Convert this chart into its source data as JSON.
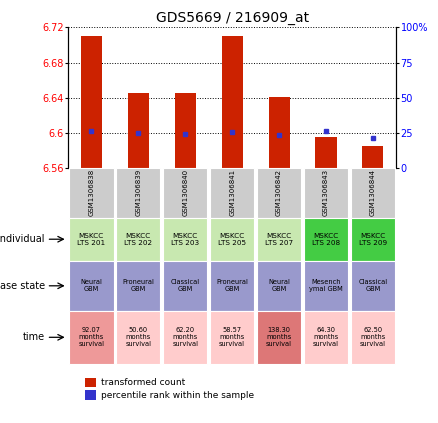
{
  "title": "GDS5669 / 216909_at",
  "samples": [
    "GSM1306838",
    "GSM1306839",
    "GSM1306840",
    "GSM1306841",
    "GSM1306842",
    "GSM1306843",
    "GSM1306844"
  ],
  "transformed_count": [
    6.71,
    6.645,
    6.645,
    6.71,
    6.641,
    6.595,
    6.585
  ],
  "percentile_rank": [
    26.0,
    24.5,
    24.0,
    25.5,
    23.5,
    26.0,
    21.0
  ],
  "ylim_left": [
    6.56,
    6.72
  ],
  "ylim_right": [
    0,
    100
  ],
  "yticks_left": [
    6.56,
    6.6,
    6.64,
    6.68,
    6.72
  ],
  "yticks_right": [
    0,
    25,
    50,
    75,
    100
  ],
  "bar_color": "#cc2200",
  "dot_color": "#3333cc",
  "individual_labels": [
    "MSKCC\nLTS 201",
    "MSKCC\nLTS 202",
    "MSKCC\nLTS 203",
    "MSKCC\nLTS 205",
    "MSKCC\nLTS 207",
    "MSKCC\nLTS 208",
    "MSKCC\nLTS 209"
  ],
  "individual_colors": [
    "#c8e8b0",
    "#c8e8b0",
    "#c8e8b0",
    "#c8e8b0",
    "#c8e8b0",
    "#44cc44",
    "#44cc44"
  ],
  "disease_state_labels": [
    "Neural\nGBM",
    "Proneural\nGBM",
    "Classical\nGBM",
    "Proneural\nGBM",
    "Neural\nGBM",
    "Mesench\nymal GBM",
    "Classical\nGBM"
  ],
  "disease_state_colors": [
    "#9999cc",
    "#9999cc",
    "#9999cc",
    "#9999cc",
    "#9999cc",
    "#9999cc",
    "#9999cc"
  ],
  "time_labels": [
    "92.07\nmonths\nsurvival",
    "50.60\nmonths\nsurvival",
    "62.20\nmonths\nsurvival",
    "58.57\nmonths\nsurvival",
    "138.30\nmonths\nsurvival",
    "64.30\nmonths\nsurvival",
    "62.50\nmonths\nsurvival"
  ],
  "time_colors": [
    "#ee9999",
    "#ffcccc",
    "#ffcccc",
    "#ffcccc",
    "#dd7777",
    "#ffcccc",
    "#ffcccc"
  ],
  "legend_transformed": "transformed count",
  "legend_percentile": "percentile rank within the sample",
  "gsm_bg": "#cccccc"
}
